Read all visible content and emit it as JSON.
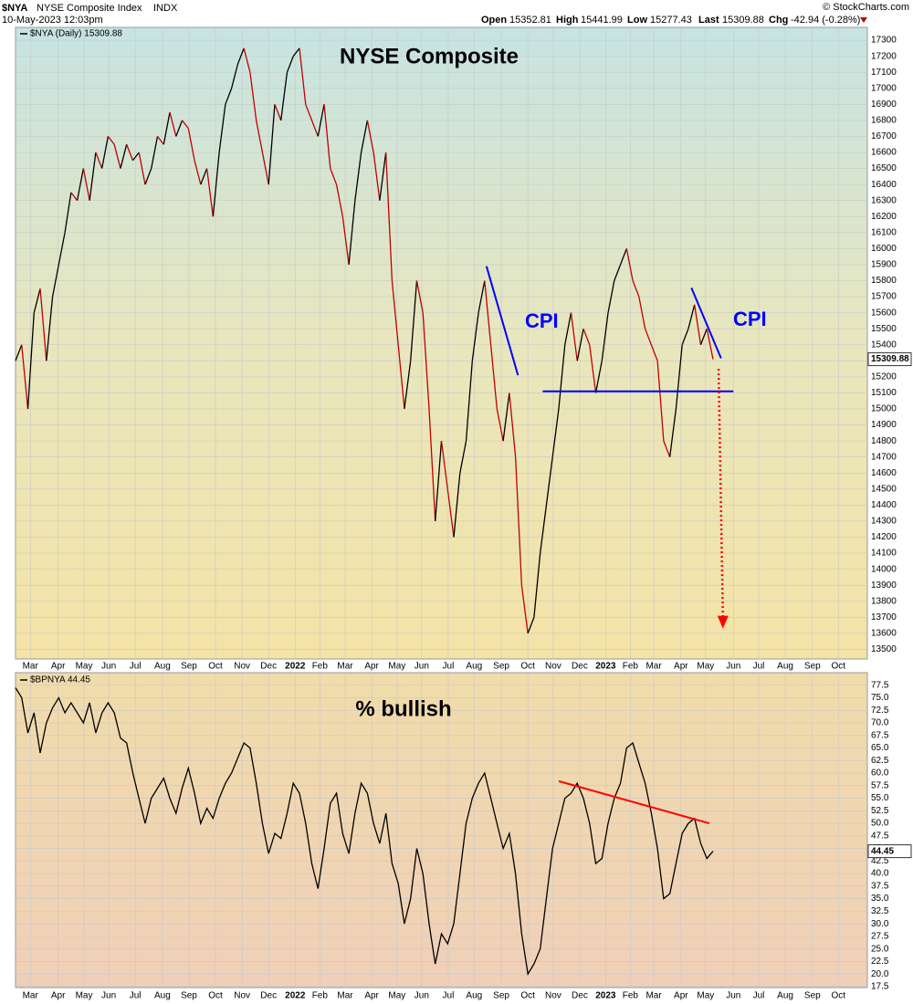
{
  "header": {
    "symbol": "$NYA",
    "name": "NYSE Composite Index",
    "exchange": "INDX",
    "date": "10-May-2023 12:03pm",
    "copyright": "© StockCharts.com",
    "open_label": "Open",
    "open": "15352.81",
    "high_label": "High",
    "high": "15441.99",
    "low_label": "Low",
    "low": "15277.43",
    "last_label": "Last",
    "last": "15309.88",
    "chg_label": "Chg",
    "chg": "-42.94 (-0.28%)"
  },
  "chart_data": [
    {
      "type": "line",
      "title": "NYSE Composite",
      "legend": "$NYA (Daily) 15309.88",
      "last_value_label": "15309.88",
      "up_color": "#000000",
      "down_color": "#c00000",
      "values": [
        15300,
        15400,
        15000,
        15600,
        15750,
        15300,
        15700,
        15900,
        16100,
        16350,
        16300,
        16500,
        16300,
        16600,
        16500,
        16700,
        16650,
        16500,
        16650,
        16550,
        16600,
        16400,
        16500,
        16700,
        16650,
        16850,
        16700,
        16800,
        16750,
        16550,
        16400,
        16500,
        16200,
        16600,
        16900,
        17000,
        17150,
        17250,
        17100,
        16800,
        16600,
        16400,
        16900,
        16800,
        17100,
        17200,
        17250,
        16900,
        16800,
        16700,
        16900,
        16500,
        16400,
        16200,
        15900,
        16300,
        16600,
        16800,
        16600,
        16300,
        16600,
        15800,
        15400,
        15000,
        15300,
        15800,
        15600,
        15000,
        14300,
        14800,
        14500,
        14200,
        14600,
        14800,
        15300,
        15600,
        15800,
        15400,
        15000,
        14800,
        15100,
        14700,
        13900,
        13600,
        13700,
        14100,
        14400,
        14700,
        15000,
        15400,
        15600,
        15300,
        15500,
        15400,
        15100,
        15300,
        15600,
        15800,
        15900,
        16000,
        15800,
        15700,
        15500,
        15400,
        15300,
        14800,
        14700,
        15000,
        15400,
        15500,
        15650,
        15400,
        15500,
        15309.88
      ],
      "xlim": [
        0,
        138
      ],
      "xticks": [
        {
          "value": 2.4,
          "label": "Mar"
        },
        {
          "value": 6.9,
          "label": "Apr"
        },
        {
          "value": 11.1,
          "label": "May"
        },
        {
          "value": 15.1,
          "label": "Jun"
        },
        {
          "value": 19.4,
          "label": "Jul"
        },
        {
          "value": 23.8,
          "label": "Aug"
        },
        {
          "value": 28.1,
          "label": "Sep"
        },
        {
          "value": 32.4,
          "label": "Oct"
        },
        {
          "value": 36.7,
          "label": "Nov"
        },
        {
          "value": 41.0,
          "label": "Dec"
        },
        {
          "value": 45.3,
          "label": "2022"
        },
        {
          "value": 49.3,
          "label": "Feb"
        },
        {
          "value": 53.4,
          "label": "Mar"
        },
        {
          "value": 57.7,
          "label": "Apr"
        },
        {
          "value": 61.8,
          "label": "May"
        },
        {
          "value": 65.8,
          "label": "Jun"
        },
        {
          "value": 70.1,
          "label": "Jul"
        },
        {
          "value": 74.3,
          "label": "Aug"
        },
        {
          "value": 78.7,
          "label": "Sep"
        },
        {
          "value": 83.0,
          "label": "Oct"
        },
        {
          "value": 87.1,
          "label": "Nov"
        },
        {
          "value": 91.4,
          "label": "Dec"
        },
        {
          "value": 95.6,
          "label": "2023"
        },
        {
          "value": 99.6,
          "label": "Feb"
        },
        {
          "value": 103.4,
          "label": "Mar"
        },
        {
          "value": 107.8,
          "label": "Apr"
        },
        {
          "value": 111.8,
          "label": "May"
        },
        {
          "value": 116.3,
          "label": "Jun"
        },
        {
          "value": 120.4,
          "label": "Jul"
        },
        {
          "value": 124.7,
          "label": "Aug"
        },
        {
          "value": 129.1,
          "label": "Sep"
        },
        {
          "value": 133.3,
          "label": "Oct"
        }
      ],
      "ylim": [
        13440,
        17380
      ],
      "yticks": [
        13500,
        13600,
        13700,
        13800,
        13900,
        14000,
        14100,
        14200,
        14300,
        14400,
        14500,
        14600,
        14700,
        14800,
        14900,
        15000,
        15100,
        15200,
        15300,
        15400,
        15500,
        15600,
        15700,
        15800,
        15900,
        16000,
        16100,
        16200,
        16300,
        16400,
        16500,
        16600,
        16700,
        16800,
        16900,
        17000,
        17100,
        17200,
        17300
      ],
      "grid": true,
      "annotations": [
        "CPI",
        "CPI"
      ],
      "trendlines": [
        {
          "color": "#0000ff",
          "x": [
            76.3,
            81.4
          ],
          "y": [
            15890,
            15210
          ]
        },
        {
          "color": "#0000ff",
          "x": [
            109.5,
            114.3
          ],
          "y": [
            15755,
            15316
          ]
        },
        {
          "color": "#0000ff",
          "x": [
            85.4,
            116.3
          ],
          "y": [
            15110,
            15110
          ]
        }
      ],
      "arrow": {
        "color": "#ff0000",
        "x": [
          113.9,
          114.6
        ],
        "y": [
          15250,
          13630
        ]
      }
    },
    {
      "type": "line",
      "title": "% bullish",
      "legend": "$BPNYA 44.45",
      "last_value_label": "44.45",
      "color": "#000000",
      "values": [
        77,
        75,
        68,
        72,
        64,
        70,
        73,
        75,
        72,
        74,
        72,
        70,
        74,
        68,
        72,
        74,
        72,
        67,
        66,
        60,
        55,
        50,
        55,
        57,
        59,
        55,
        52,
        57,
        61,
        56,
        50,
        53,
        51,
        55,
        58,
        60,
        63,
        66,
        65,
        58,
        50,
        44,
        48,
        47,
        52,
        58,
        56,
        50,
        42,
        37,
        45,
        54,
        56,
        48,
        44,
        52,
        58,
        56,
        50,
        46,
        52,
        42,
        38,
        30,
        35,
        45,
        40,
        30,
        22,
        28,
        26,
        30,
        40,
        50,
        55,
        58,
        60,
        55,
        50,
        45,
        48,
        40,
        28,
        20,
        22,
        25,
        35,
        45,
        50,
        55,
        56,
        58,
        55,
        50,
        42,
        43,
        50,
        55,
        58,
        65,
        66,
        62,
        58,
        52,
        45,
        35,
        36,
        42,
        48,
        50,
        51,
        46,
        43,
        44.45
      ],
      "xlim": [
        0,
        138
      ],
      "xticks": [
        {
          "value": 2.4,
          "label": "Mar"
        },
        {
          "value": 6.9,
          "label": "Apr"
        },
        {
          "value": 11.1,
          "label": "May"
        },
        {
          "value": 15.1,
          "label": "Jun"
        },
        {
          "value": 19.4,
          "label": "Jul"
        },
        {
          "value": 23.8,
          "label": "Aug"
        },
        {
          "value": 28.1,
          "label": "Sep"
        },
        {
          "value": 32.4,
          "label": "Oct"
        },
        {
          "value": 36.7,
          "label": "Nov"
        },
        {
          "value": 41.0,
          "label": "Dec"
        },
        {
          "value": 45.3,
          "label": "2022"
        },
        {
          "value": 49.3,
          "label": "Feb"
        },
        {
          "value": 53.4,
          "label": "Mar"
        },
        {
          "value": 57.7,
          "label": "Apr"
        },
        {
          "value": 61.8,
          "label": "May"
        },
        {
          "value": 65.8,
          "label": "Jun"
        },
        {
          "value": 70.1,
          "label": "Jul"
        },
        {
          "value": 74.3,
          "label": "Aug"
        },
        {
          "value": 78.7,
          "label": "Sep"
        },
        {
          "value": 83.0,
          "label": "Oct"
        },
        {
          "value": 87.1,
          "label": "Nov"
        },
        {
          "value": 91.4,
          "label": "Dec"
        },
        {
          "value": 95.6,
          "label": "2023"
        },
        {
          "value": 99.6,
          "label": "Feb"
        },
        {
          "value": 103.4,
          "label": "Mar"
        },
        {
          "value": 107.8,
          "label": "Apr"
        },
        {
          "value": 111.8,
          "label": "May"
        },
        {
          "value": 116.3,
          "label": "Jun"
        },
        {
          "value": 120.4,
          "label": "Jul"
        },
        {
          "value": 124.7,
          "label": "Aug"
        },
        {
          "value": 129.1,
          "label": "Sep"
        },
        {
          "value": 133.3,
          "label": "Oct"
        }
      ],
      "ylim": [
        17.3,
        80
      ],
      "yticks": [
        17.5,
        {
          "value": 20,
          "label": "20.0"
        },
        22.5,
        {
          "value": 25,
          "label": "25.0"
        },
        27.5,
        {
          "value": 30,
          "label": "30.0"
        },
        32.5,
        {
          "value": 35,
          "label": "35.0"
        },
        37.5,
        {
          "value": 40,
          "label": "40.0"
        },
        42.5,
        {
          "value": 45,
          "label": "45.0"
        },
        47.5,
        {
          "value": 50,
          "label": "50.0"
        },
        52.5,
        {
          "value": 55,
          "label": "55.0"
        },
        57.5,
        {
          "value": 60,
          "label": "60.0"
        },
        62.5,
        {
          "value": 65,
          "label": "65.0"
        },
        67.5,
        {
          "value": 70,
          "label": "70.0"
        },
        72.5,
        {
          "value": 75,
          "label": "75.0"
        },
        77.5
      ],
      "grid": true,
      "trendlines": [
        {
          "color": "#ff0000",
          "x": [
            88.0,
            112.4
          ],
          "y": [
            58.4,
            50.0
          ]
        }
      ]
    }
  ]
}
